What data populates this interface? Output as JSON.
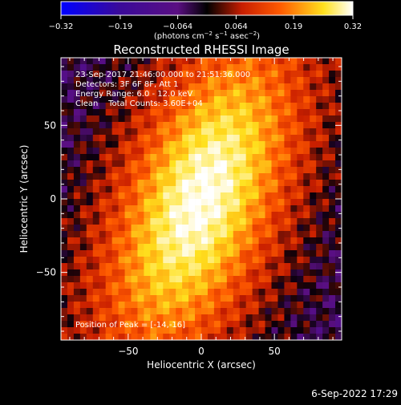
{
  "colorbar": {
    "ticks": [
      "-0.32",
      "-0.19",
      "-0.064",
      "0.064",
      "0.19",
      "0.32"
    ],
    "tick_values": [
      -0.32,
      -0.19,
      -0.064,
      0.064,
      0.19,
      0.32
    ],
    "range": [
      -0.32,
      0.32
    ],
    "unit_label": "(photons cm-2 s-1 asec-2)",
    "colors": [
      "#0000ff",
      "#3a0a9a",
      "#5a0f82",
      "#000000",
      "#c81e00",
      "#ff5a00",
      "#ffe11e",
      "#ffffff"
    ]
  },
  "chart_data": {
    "type": "heatmap",
    "title": "Reconstructed RHESSI Image",
    "xlabel": "Heliocentric X (arcsec)",
    "ylabel": "Heliocentric Y (arcsec)",
    "xlim": [
      -96,
      96
    ],
    "ylim": [
      -96,
      96
    ],
    "xticks": [
      -50,
      0,
      50
    ],
    "yticks": [
      -50,
      0,
      50
    ],
    "peak": [
      -14,
      -16
    ],
    "info": [
      "23-Sep-2017 21:46:00.000 to 21:51:36.000",
      "Detectors: 3F 6F 8F, Att 1",
      "Energy Range: 6.0 - 12.0 keV",
      "Clean    Total Counts: 3.60E+04"
    ],
    "peak_text": "Position of Peak = [-14,-16]"
  },
  "footer": {
    "date": "6-Sep-2022 17:29"
  }
}
